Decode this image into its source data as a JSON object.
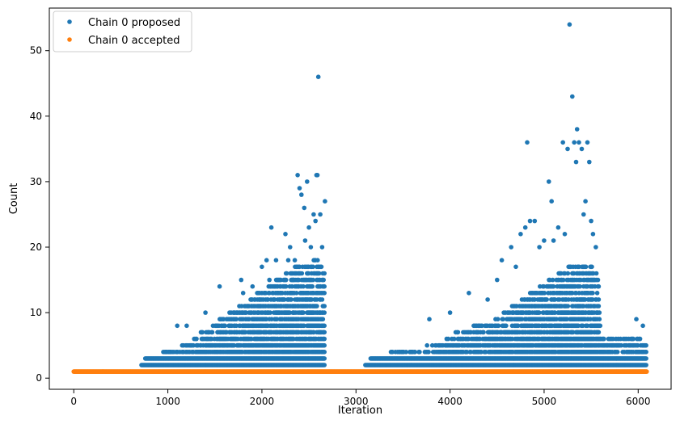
{
  "chart_data": {
    "type": "scatter",
    "title": "",
    "xlabel": "Iteration",
    "ylabel": "Count",
    "xlim": [
      -260,
      6350
    ],
    "ylim": [
      -1.7,
      56.5
    ],
    "xticks": [
      0,
      1000,
      2000,
      3000,
      4000,
      5000,
      6000
    ],
    "yticks": [
      0,
      10,
      20,
      30,
      40,
      50
    ],
    "legend_position": "top-left",
    "grid": false,
    "series": [
      {
        "name": "Chain 0 proposed",
        "color": "#1f77b4",
        "segments": [
          {
            "x_start": 720,
            "x_end": 2670,
            "y_min": 2,
            "envelope": [
              [
                720,
                2
              ],
              [
                800,
                3
              ],
              [
                900,
                3
              ],
              [
                1000,
                4
              ],
              [
                1100,
                4
              ],
              [
                1200,
                5
              ],
              [
                1300,
                6
              ],
              [
                1400,
                7
              ],
              [
                1500,
                8
              ],
              [
                1600,
                9
              ],
              [
                1700,
                10
              ],
              [
                1800,
                11
              ],
              [
                1900,
                12
              ],
              [
                2000,
                13
              ],
              [
                2100,
                14
              ],
              [
                2200,
                15
              ],
              [
                2300,
                16
              ],
              [
                2400,
                17
              ],
              [
                2500,
                17
              ],
              [
                2600,
                18
              ],
              [
                2670,
                16
              ]
            ]
          },
          {
            "x_start": 3100,
            "x_end": 6090,
            "y_min": 2,
            "envelope": [
              [
                3100,
                2
              ],
              [
                3200,
                3
              ],
              [
                3300,
                3
              ],
              [
                3400,
                4
              ],
              [
                3500,
                4
              ],
              [
                3600,
                4
              ],
              [
                3700,
                4
              ],
              [
                3800,
                5
              ],
              [
                3900,
                5
              ],
              [
                4000,
                6
              ],
              [
                4100,
                7
              ],
              [
                4200,
                7
              ],
              [
                4300,
                8
              ],
              [
                4400,
                8
              ],
              [
                4500,
                9
              ],
              [
                4600,
                10
              ],
              [
                4700,
                11
              ],
              [
                4800,
                12
              ],
              [
                4900,
                13
              ],
              [
                5000,
                14
              ],
              [
                5100,
                15
              ],
              [
                5200,
                16
              ],
              [
                5300,
                17
              ],
              [
                5400,
                17
              ],
              [
                5500,
                17
              ],
              [
                5580,
                15
              ],
              [
                5600,
                6
              ],
              [
                5800,
                6
              ],
              [
                5900,
                6
              ],
              [
                6000,
                6
              ],
              [
                6090,
                5
              ]
            ]
          }
        ],
        "outliers": [
          {
            "x": 1100,
            "y": 8
          },
          {
            "x": 1200,
            "y": 8
          },
          {
            "x": 1400,
            "y": 10
          },
          {
            "x": 1550,
            "y": 14
          },
          {
            "x": 1780,
            "y": 15
          },
          {
            "x": 1800,
            "y": 13
          },
          {
            "x": 1900,
            "y": 14
          },
          {
            "x": 1950,
            "y": 13
          },
          {
            "x": 2000,
            "y": 17
          },
          {
            "x": 2050,
            "y": 18
          },
          {
            "x": 2080,
            "y": 15
          },
          {
            "x": 2100,
            "y": 23
          },
          {
            "x": 2150,
            "y": 18
          },
          {
            "x": 2200,
            "y": 13
          },
          {
            "x": 2250,
            "y": 22
          },
          {
            "x": 2280,
            "y": 18
          },
          {
            "x": 2300,
            "y": 20
          },
          {
            "x": 2330,
            "y": 15
          },
          {
            "x": 2350,
            "y": 18
          },
          {
            "x": 2380,
            "y": 31
          },
          {
            "x": 2400,
            "y": 29
          },
          {
            "x": 2420,
            "y": 28
          },
          {
            "x": 2450,
            "y": 26
          },
          {
            "x": 2460,
            "y": 21
          },
          {
            "x": 2480,
            "y": 30
          },
          {
            "x": 2500,
            "y": 23
          },
          {
            "x": 2520,
            "y": 20
          },
          {
            "x": 2550,
            "y": 25
          },
          {
            "x": 2570,
            "y": 24
          },
          {
            "x": 2580,
            "y": 31
          },
          {
            "x": 2590,
            "y": 31
          },
          {
            "x": 2600,
            "y": 46
          },
          {
            "x": 2620,
            "y": 25
          },
          {
            "x": 2640,
            "y": 20
          },
          {
            "x": 2670,
            "y": 27
          },
          {
            "x": 3780,
            "y": 9
          },
          {
            "x": 4000,
            "y": 10
          },
          {
            "x": 4200,
            "y": 13
          },
          {
            "x": 4400,
            "y": 12
          },
          {
            "x": 4500,
            "y": 15
          },
          {
            "x": 4550,
            "y": 18
          },
          {
            "x": 4650,
            "y": 20
          },
          {
            "x": 4700,
            "y": 17
          },
          {
            "x": 4750,
            "y": 22
          },
          {
            "x": 4800,
            "y": 23
          },
          {
            "x": 4820,
            "y": 36
          },
          {
            "x": 4850,
            "y": 24
          },
          {
            "x": 4900,
            "y": 24
          },
          {
            "x": 4950,
            "y": 20
          },
          {
            "x": 5000,
            "y": 21
          },
          {
            "x": 5050,
            "y": 30
          },
          {
            "x": 5080,
            "y": 27
          },
          {
            "x": 5100,
            "y": 21
          },
          {
            "x": 5150,
            "y": 23
          },
          {
            "x": 5200,
            "y": 36
          },
          {
            "x": 5220,
            "y": 22
          },
          {
            "x": 5250,
            "y": 35
          },
          {
            "x": 5270,
            "y": 54
          },
          {
            "x": 5300,
            "y": 43
          },
          {
            "x": 5320,
            "y": 36
          },
          {
            "x": 5340,
            "y": 33
          },
          {
            "x": 5350,
            "y": 38
          },
          {
            "x": 5370,
            "y": 36
          },
          {
            "x": 5400,
            "y": 35
          },
          {
            "x": 5420,
            "y": 25
          },
          {
            "x": 5440,
            "y": 27
          },
          {
            "x": 5460,
            "y": 36
          },
          {
            "x": 5480,
            "y": 33
          },
          {
            "x": 5500,
            "y": 24
          },
          {
            "x": 5520,
            "y": 22
          },
          {
            "x": 5550,
            "y": 20
          },
          {
            "x": 5980,
            "y": 9
          },
          {
            "x": 6050,
            "y": 8
          }
        ]
      },
      {
        "name": "Chain 0 accepted",
        "color": "#ff7f0e",
        "x_start": 0,
        "x_end": 6090,
        "y": 1
      }
    ]
  }
}
